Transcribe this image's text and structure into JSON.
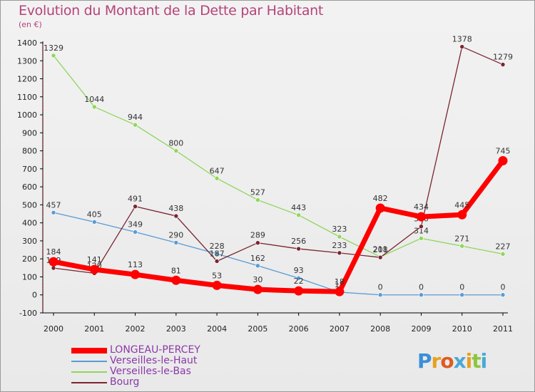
{
  "header": {
    "title": "Evolution du Montant de la Dette par Habitant",
    "subtitle": "(en €)"
  },
  "chart_data": {
    "type": "line",
    "title": "Evolution du Montant de la Dette par Habitant",
    "ylabel": "(en €)",
    "xlabel": "",
    "x": [
      "2000",
      "2001",
      "2002",
      "2003",
      "2004",
      "2005",
      "2006",
      "2007",
      "2008",
      "2009",
      "2010",
      "2011"
    ],
    "ylim": [
      -100,
      1400
    ],
    "yticks": [
      -100,
      0,
      100,
      200,
      300,
      400,
      500,
      600,
      700,
      800,
      900,
      1000,
      1100,
      1200,
      1300,
      1400
    ],
    "grid": false,
    "legend_position": "bottom-left",
    "series": [
      {
        "name": "Verseilles-le-Haut",
        "color": "#5a9bd4",
        "values": [
          457,
          405,
          349,
          290,
          228,
          162,
          93,
          15,
          0,
          0,
          0,
          0
        ]
      },
      {
        "name": "Verseilles-le-Bas",
        "color": "#8fd65a",
        "values": [
          1329,
          1044,
          944,
          800,
          647,
          527,
          443,
          323,
          211,
          314,
          271,
          227
        ]
      },
      {
        "name": "Bourg",
        "color": "#7a2530",
        "values": [
          149,
          120,
          491,
          438,
          187,
          289,
          256,
          233,
          208,
          380,
          1378,
          1279
        ]
      },
      {
        "name": "LONGEAU-PERCEY",
        "color": "#ff0000",
        "values": [
          184,
          141,
          113,
          81,
          53,
          30,
          22,
          18,
          482,
          434,
          445,
          745
        ]
      }
    ]
  },
  "legend": {
    "items": [
      {
        "label": "LONGEAU-PERCEY",
        "color": "#ff0000"
      },
      {
        "label": "Verseilles-le-Haut",
        "color": "#5a9bd4"
      },
      {
        "label": "Verseilles-le-Bas",
        "color": "#8fd65a"
      },
      {
        "label": "Bourg",
        "color": "#7a2530"
      }
    ]
  },
  "logo": {
    "letters": [
      "P",
      "r",
      "o",
      "x",
      "i",
      "t",
      "i"
    ],
    "colors": [
      "#3a8fd8",
      "#e8a020",
      "#e05a20",
      "#4aa8d8",
      "#e8a020",
      "#8cc63f",
      "#4aa8d8"
    ]
  }
}
